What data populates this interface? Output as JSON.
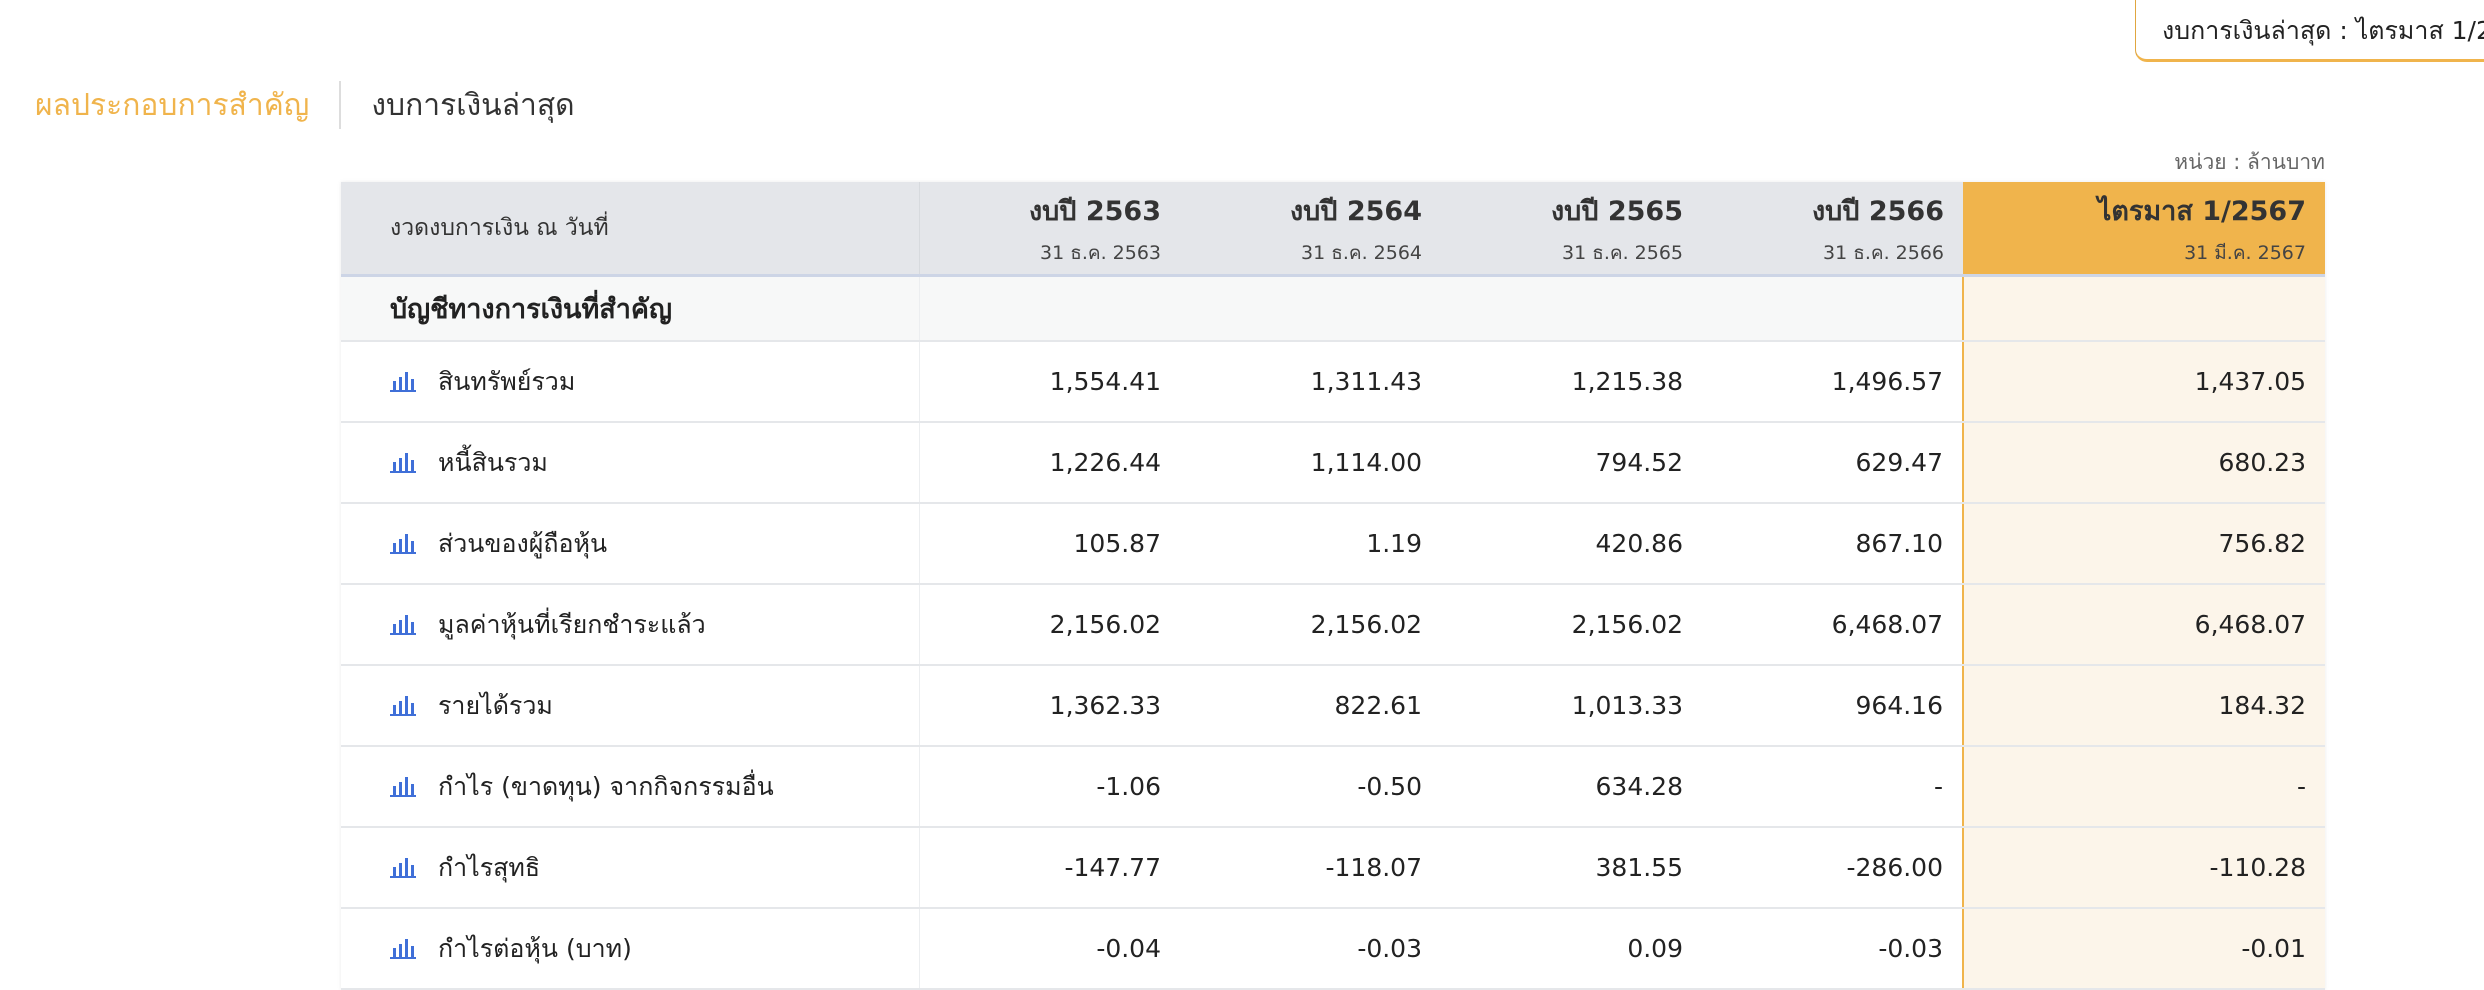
{
  "top_tab": {
    "label": "งบการเงินล่าสุด : ไตรมาส 1/2"
  },
  "tabs": [
    {
      "label": "ผลประกอบการสำคัญ",
      "active": true
    },
    {
      "label": "งบการเงินล่าสุด",
      "active": false
    }
  ],
  "unit": "หน่วย : ล้านบาท",
  "colors": {
    "accent": "#f0b44c",
    "header_bg": "#e4e6ea",
    "highlight_bg": "#fcf5ea",
    "icon": "#3f6fd8"
  },
  "table": {
    "header_label": "งวดงบการเงิน ณ วันที่",
    "columns": [
      {
        "title": "งบปี 2563",
        "date": "31 ธ.ค. 2563"
      },
      {
        "title": "งบปี 2564",
        "date": "31 ธ.ค. 2564"
      },
      {
        "title": "งบปี 2565",
        "date": "31 ธ.ค. 2565"
      },
      {
        "title": "งบปี 2566",
        "date": "31 ธ.ค. 2566"
      },
      {
        "title": "ไตรมาส 1/2567",
        "date": "31 มี.ค. 2567"
      }
    ],
    "section": "บัญชีทางการเงินที่สำคัญ",
    "rows": [
      {
        "label": "สินทรัพย์รวม",
        "icon": "bar-chart-icon",
        "values": [
          "1,554.41",
          "1,311.43",
          "1,215.38",
          "1,496.57",
          "1,437.05"
        ]
      },
      {
        "label": "หนี้สินรวม",
        "icon": "bar-chart-icon",
        "values": [
          "1,226.44",
          "1,114.00",
          "794.52",
          "629.47",
          "680.23"
        ]
      },
      {
        "label": "ส่วนของผู้ถือหุ้น",
        "icon": "bar-chart-icon",
        "values": [
          "105.87",
          "1.19",
          "420.86",
          "867.10",
          "756.82"
        ]
      },
      {
        "label": "มูลค่าหุ้นที่เรียกชำระแล้ว",
        "icon": "bar-chart-icon",
        "values": [
          "2,156.02",
          "2,156.02",
          "2,156.02",
          "6,468.07",
          "6,468.07"
        ]
      },
      {
        "label": "รายได้รวม",
        "icon": "bar-chart-icon",
        "values": [
          "1,362.33",
          "822.61",
          "1,013.33",
          "964.16",
          "184.32"
        ]
      },
      {
        "label": "กำไร (ขาดทุน) จากกิจกรรมอื่น",
        "icon": "bar-chart-icon",
        "values": [
          "-1.06",
          "-0.50",
          "634.28",
          "-",
          "-"
        ]
      },
      {
        "label": "กำไรสุทธิ",
        "icon": "bar-chart-icon",
        "values": [
          "-147.77",
          "-118.07",
          "381.55",
          "-286.00",
          "-110.28"
        ]
      },
      {
        "label": "กำไรต่อหุ้น (บาท)",
        "icon": "bar-chart-icon",
        "values": [
          "-0.04",
          "-0.03",
          "0.09",
          "-0.03",
          "-0.01"
        ]
      }
    ]
  }
}
